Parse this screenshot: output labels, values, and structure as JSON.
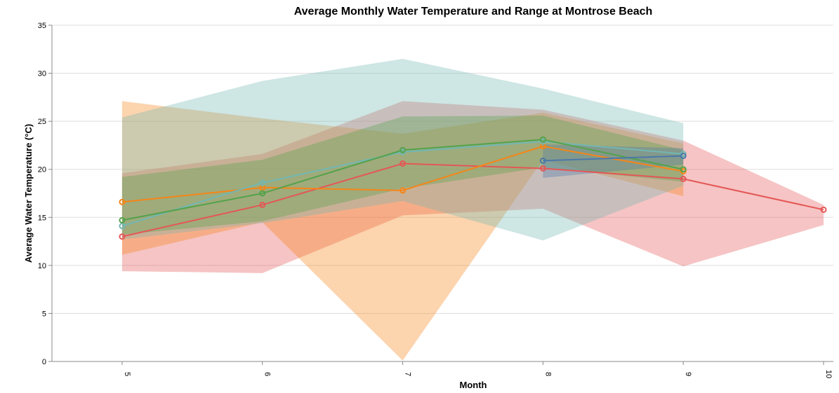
{
  "chart_data": {
    "type": "line",
    "title": "Average Monthly Water Temperature and Range at Montrose Beach",
    "xlabel": "Month",
    "ylabel": "Average Water Temperature (°C)",
    "xlim": [
      4.5,
      10.07
    ],
    "ylim": [
      0,
      35
    ],
    "x_ticks": [
      5,
      6,
      7,
      8,
      9,
      10
    ],
    "y_ticks": [
      0,
      5,
      10,
      15,
      20,
      25,
      30,
      35
    ],
    "grid": true,
    "band_opacity": 0.35,
    "series": [
      {
        "color": "#e45756",
        "points": [
          [
            5,
            13.0
          ],
          [
            6,
            16.3
          ],
          [
            7,
            20.6
          ],
          [
            8,
            20.1
          ],
          [
            9,
            19.0
          ],
          [
            10,
            15.8
          ]
        ],
        "band": [
          [
            5,
            9.4,
            19.6
          ],
          [
            6,
            9.2,
            21.6
          ],
          [
            7,
            15.2,
            27.1
          ],
          [
            8,
            15.9,
            26.2
          ],
          [
            9,
            9.9,
            23.0
          ],
          [
            10,
            14.2,
            16.3
          ]
        ]
      },
      {
        "color": "#f58518",
        "points": [
          [
            5,
            16.6
          ],
          [
            6,
            18.1
          ],
          [
            7,
            17.8
          ],
          [
            8,
            22.4
          ],
          [
            9,
            19.8
          ]
        ],
        "band": [
          [
            5,
            11.1,
            27.1
          ],
          [
            6,
            14.5,
            25.3
          ],
          [
            7,
            0.1,
            23.7
          ],
          [
            8,
            21.0,
            25.9
          ],
          [
            9,
            17.2,
            22.7
          ]
        ]
      },
      {
        "color": "#72b7b2",
        "points": [
          [
            5,
            14.1
          ],
          [
            6,
            18.6
          ],
          [
            7,
            21.8
          ],
          [
            8,
            22.9
          ],
          [
            9,
            21.6
          ]
        ],
        "band": [
          [
            5,
            12.7,
            25.4
          ],
          [
            6,
            14.4,
            29.2
          ],
          [
            7,
            16.7,
            31.5
          ],
          [
            8,
            12.6,
            28.4
          ],
          [
            9,
            18.3,
            24.8
          ]
        ]
      },
      {
        "color": "#54a24b",
        "points": [
          [
            5,
            14.7
          ],
          [
            6,
            17.5
          ],
          [
            7,
            22.0
          ],
          [
            8,
            23.1
          ],
          [
            9,
            20.0
          ]
        ],
        "band": [
          [
            5,
            13.2,
            19.2
          ],
          [
            6,
            14.6,
            21.0
          ],
          [
            7,
            18.0,
            25.5
          ],
          [
            8,
            20.2,
            25.6
          ],
          [
            9,
            18.7,
            22.0
          ]
        ]
      },
      {
        "color": "#4c78a8",
        "points": [
          [
            8,
            20.9
          ],
          [
            9,
            21.4
          ]
        ],
        "band": [
          [
            8,
            19.1,
            22.6
          ],
          [
            9,
            20.5,
            22.2
          ]
        ]
      }
    ]
  }
}
